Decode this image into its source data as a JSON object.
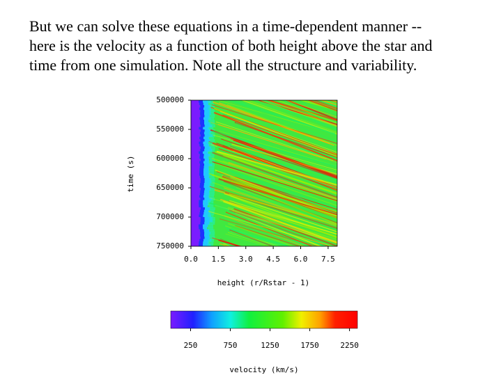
{
  "slide_text": [
    "But we can solve these equations in a time-dependent manner --",
    "here is the velocity as a function of both height above the star and",
    "time from one simulation.  Note all the structure and variability."
  ],
  "chart_data": {
    "type": "heatmap",
    "xlabel": "height (r/Rstar - 1)",
    "ylabel": "time (s)",
    "xlim": [
      0,
      8
    ],
    "xticks": [
      {
        "value": 0,
        "label": "0.0"
      },
      {
        "value": 1.5,
        "label": "1.5"
      },
      {
        "value": 3,
        "label": "3.0"
      },
      {
        "value": 4.5,
        "label": "4.5"
      },
      {
        "value": 6,
        "label": "6.0"
      },
      {
        "value": 7.5,
        "label": "7.5"
      }
    ],
    "ylim": [
      500000,
      750000
    ],
    "yticks": [
      500000,
      550000,
      600000,
      650000,
      700000,
      750000
    ],
    "colorbar": {
      "label": "velocity (km/s)",
      "clim": [
        0,
        2350
      ],
      "ticks": [
        250,
        750,
        1250,
        1750,
        2250
      ]
    }
  }
}
